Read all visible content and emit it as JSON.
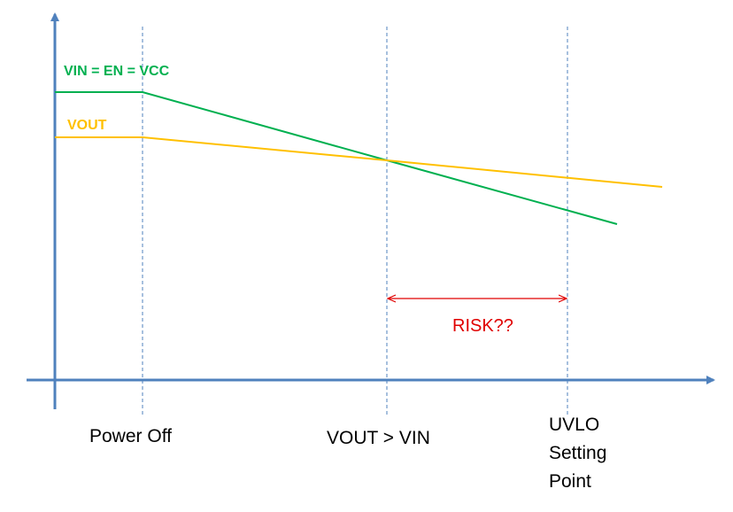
{
  "colors": {
    "axis": "#4f81bd",
    "marker": "#4f81bd",
    "vin": "#00b050",
    "vout": "#ffc000",
    "risk": "#e00000",
    "text": "#000000"
  },
  "series": [
    {
      "key": "vin",
      "label": "VIN = EN = VCC"
    },
    {
      "key": "vout",
      "label": "VOUT"
    }
  ],
  "events": [
    {
      "key": "power_off",
      "label": "Power Off"
    },
    {
      "key": "crossover",
      "label": "VOUT > VIN"
    },
    {
      "key": "uvlo",
      "label": "UVLO\nSetting\nPoint"
    }
  ],
  "risk": {
    "label": "RISK??"
  }
}
